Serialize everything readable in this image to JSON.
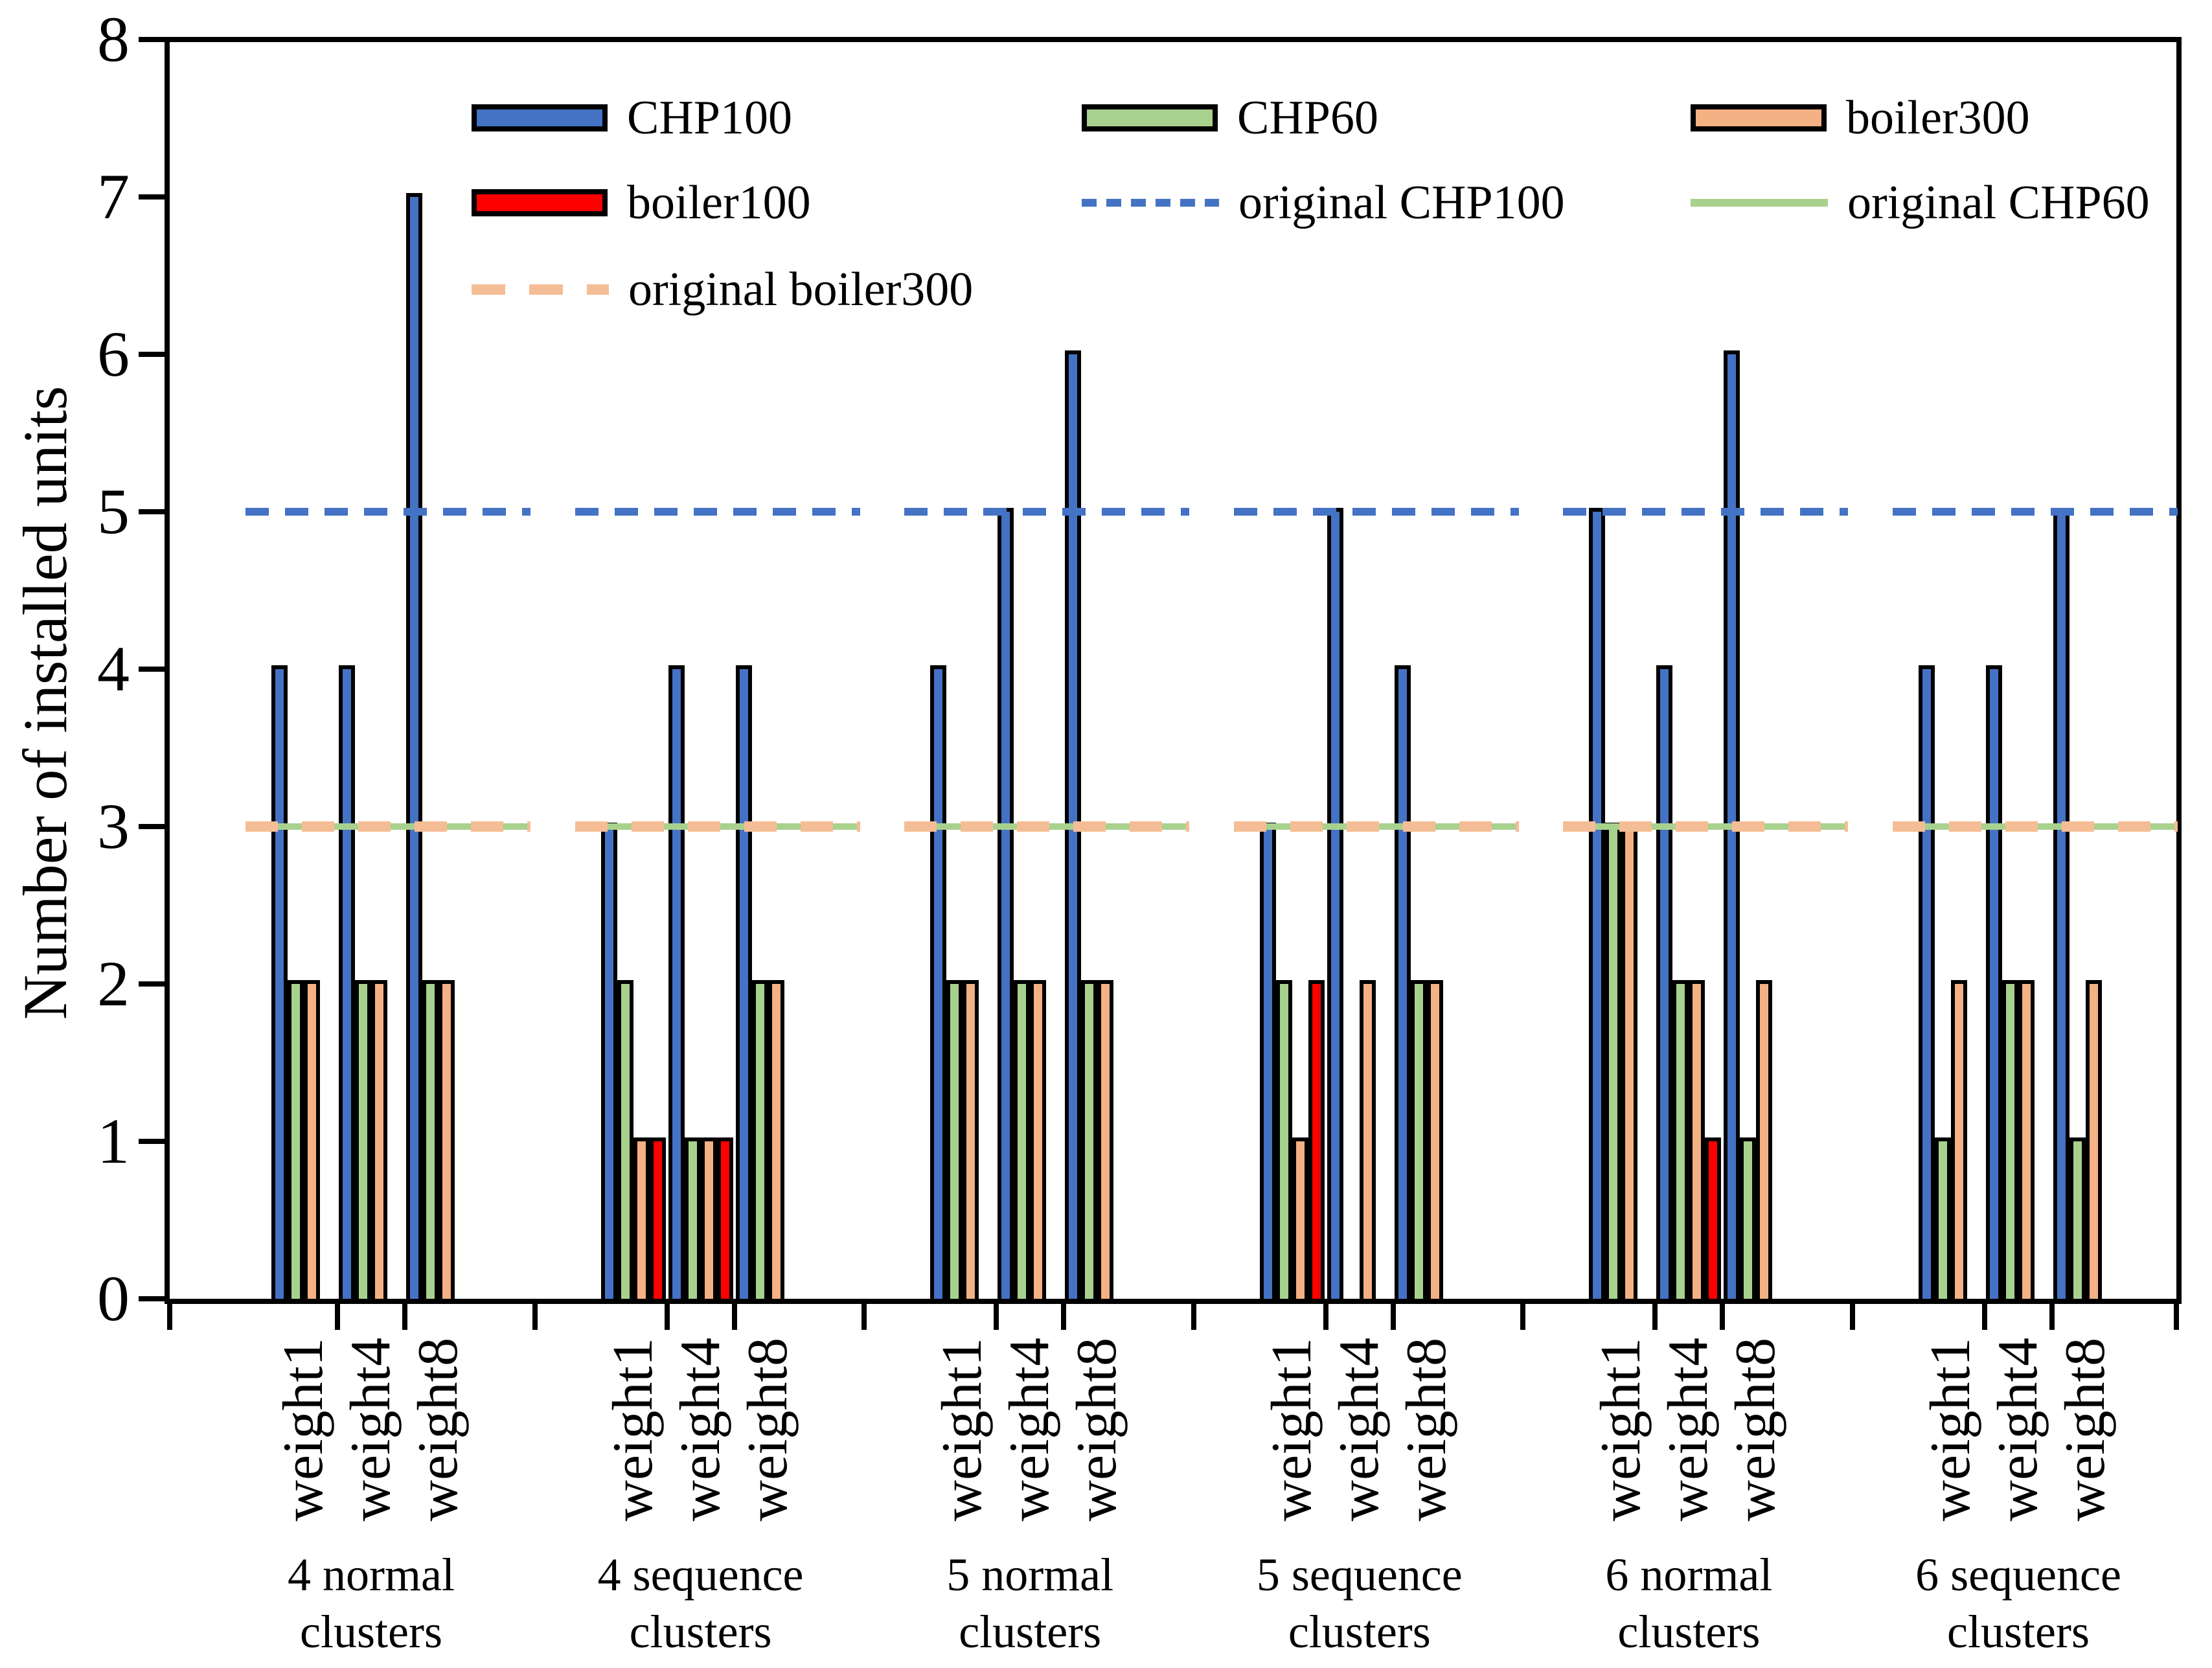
{
  "chart_data": {
    "type": "bar",
    "title": "",
    "xlabel": "",
    "ylabel": "Number of installed units",
    "ylim": [
      0,
      8
    ],
    "y_ticks": [
      0,
      1,
      2,
      3,
      4,
      5,
      6,
      7,
      8
    ],
    "grid": false,
    "legend_position": "top-inside",
    "group_labels": [
      "4 normal clusters",
      "4 sequence clusters",
      "5 normal clusters",
      "5 sequence clusters",
      "6 normal clusters",
      "6 sequence clusters"
    ],
    "weight_labels": [
      "weight1",
      "weight4",
      "weight8"
    ],
    "series": [
      {
        "name": "CHP100",
        "color": "#4472C4",
        "values": [
          [
            4,
            4,
            7
          ],
          [
            3,
            4,
            4
          ],
          [
            4,
            5,
            6
          ],
          [
            3,
            5,
            4
          ],
          [
            5,
            4,
            6
          ],
          [
            4,
            4,
            5
          ]
        ]
      },
      {
        "name": "CHP60",
        "color": "#A9D18E",
        "values": [
          [
            2,
            2,
            2
          ],
          [
            2,
            1,
            2
          ],
          [
            2,
            2,
            2
          ],
          [
            2,
            0,
            2
          ],
          [
            3,
            2,
            1
          ],
          [
            1,
            2,
            1
          ]
        ]
      },
      {
        "name": "boiler300",
        "color": "#F4B183",
        "values": [
          [
            2,
            2,
            2
          ],
          [
            1,
            1,
            2
          ],
          [
            2,
            2,
            2
          ],
          [
            1,
            2,
            2
          ],
          [
            3,
            2,
            2
          ],
          [
            2,
            2,
            2
          ]
        ]
      },
      {
        "name": "boiler100",
        "color": "#FF0000",
        "values": [
          [
            0,
            0,
            0
          ],
          [
            1,
            1,
            0
          ],
          [
            0,
            0,
            0
          ],
          [
            2,
            0,
            0
          ],
          [
            0,
            1,
            0
          ],
          [
            0,
            0,
            0
          ]
        ]
      }
    ],
    "reference_lines": [
      {
        "name": "original CHP100",
        "value": 5,
        "style": "dashed",
        "color": "#4472C4"
      },
      {
        "name": "original CHP60",
        "value": 3,
        "style": "solid",
        "color": "#A9D18E"
      },
      {
        "name": "original boiler300",
        "value": 3,
        "style": "long-dashed",
        "color": "#F5BD95"
      }
    ]
  },
  "legend": {
    "items": [
      {
        "label": "CHP100",
        "type": "swatch",
        "color": "#4472C4",
        "row": 0,
        "col": 0
      },
      {
        "label": "CHP60",
        "type": "swatch",
        "color": "#A9D18E",
        "row": 0,
        "col": 1
      },
      {
        "label": "boiler300",
        "type": "swatch",
        "color": "#F4B183",
        "row": 0,
        "col": 2
      },
      {
        "label": "boiler100",
        "type": "swatch",
        "color": "#FF0000",
        "row": 1,
        "col": 0
      },
      {
        "label": "original CHP100",
        "type": "dashed-line",
        "color": "#4472C4",
        "row": 1,
        "col": 1
      },
      {
        "label": "original CHP60",
        "type": "solid-line",
        "color": "#A9D18E",
        "row": 1,
        "col": 2
      },
      {
        "label": "original boiler300",
        "type": "long-dashed-line",
        "color": "#F5BD95",
        "row": 2,
        "col": 0
      }
    ]
  }
}
